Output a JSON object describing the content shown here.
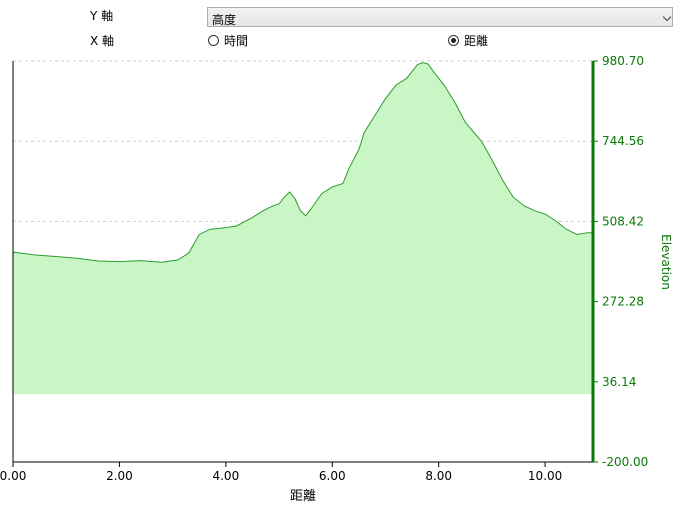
{
  "controls": {
    "y_axis_label": "Y 軸",
    "x_axis_label": "X 軸",
    "y_select_value": "高度",
    "x_options": [
      {
        "label": "時間",
        "checked": false
      },
      {
        "label": "距離",
        "checked": true
      }
    ]
  },
  "chart_data": {
    "type": "area",
    "xlabel": "距離",
    "ylabel": "Elevation",
    "xlim": [
      0,
      10.9
    ],
    "ylim": [
      -200,
      980.7
    ],
    "x_ticks": [
      "0.00",
      "2.00",
      "4.00",
      "6.00",
      "8.00",
      "10.00"
    ],
    "x_tick_values": [
      0,
      2,
      4,
      6,
      8,
      10
    ],
    "y_ticks": [
      "-200.00",
      "36.14",
      "272.28",
      "508.42",
      "744.56",
      "980.70"
    ],
    "y_tick_values": [
      -200,
      36.14,
      272.28,
      508.42,
      744.56,
      980.7
    ],
    "baseline": 0,
    "grid": true,
    "y_axis_side": "right",
    "colors": {
      "fill": "#c8f7c5",
      "line": "#2e9a2e",
      "axis": "#0a7a0a"
    },
    "series": [
      {
        "x": [
          0,
          0.4,
          0.8,
          1.2,
          1.6,
          2.0,
          2.4,
          2.8,
          3.1,
          3.3,
          3.5,
          3.7,
          4.0,
          4.2,
          4.5,
          4.7,
          4.9,
          5.0,
          5.1,
          5.2,
          5.3,
          5.4,
          5.5,
          5.6,
          5.8,
          6.0,
          6.2,
          6.3,
          6.5,
          6.6,
          6.8,
          7.0,
          7.2,
          7.4,
          7.6,
          7.7,
          7.8,
          7.9,
          8.1,
          8.3,
          8.5,
          8.8,
          9.0,
          9.2,
          9.4,
          9.6,
          9.8,
          10.0,
          10.2,
          10.4,
          10.6,
          10.8,
          10.9
        ],
        "y": [
          418,
          410,
          405,
          400,
          392,
          390,
          393,
          388,
          395,
          415,
          470,
          485,
          490,
          495,
          520,
          540,
          555,
          560,
          580,
          595,
          575,
          540,
          525,
          545,
          590,
          610,
          620,
          660,
          720,
          770,
          820,
          870,
          910,
          930,
          970,
          976,
          972,
          950,
          910,
          860,
          800,
          745,
          690,
          630,
          580,
          555,
          540,
          530,
          510,
          485,
          470,
          475,
          475
        ]
      }
    ]
  }
}
